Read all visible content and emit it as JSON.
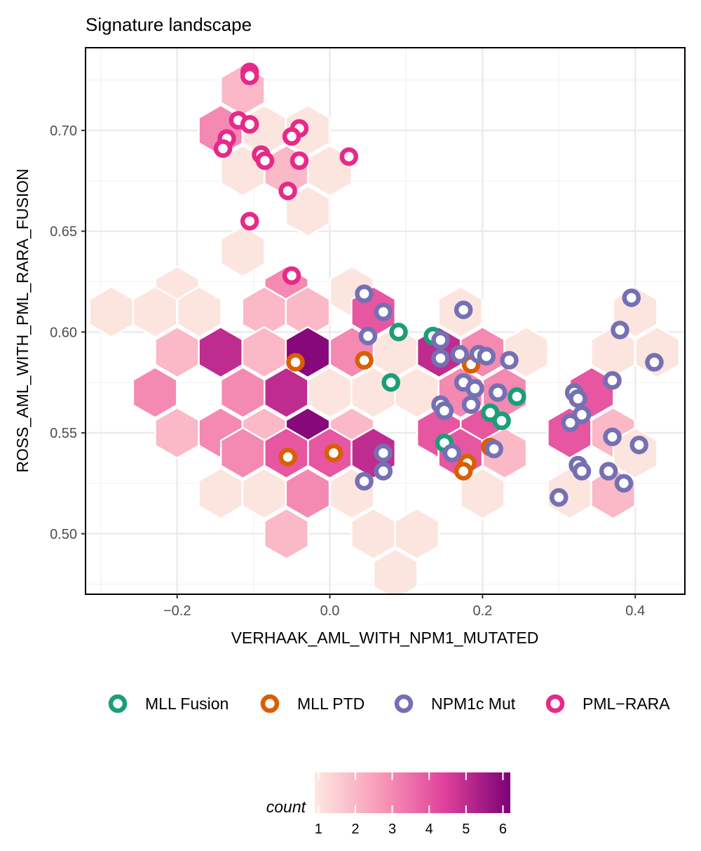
{
  "chart_data": {
    "type": "scatter",
    "title": "Signature landscape",
    "xlabel": "VERHAAK_AML_WITH_NPM1_MUTATED",
    "ylabel": "ROSS_AML_WITH_PML_RARA_FUSION",
    "xlim": [
      -0.32,
      0.465
    ],
    "ylim": [
      0.47,
      0.741
    ],
    "x_ticks": [
      -0.2,
      0.0,
      0.2,
      0.4
    ],
    "x_tick_labels": [
      "−0.2",
      "0.0",
      "0.2",
      "0.4"
    ],
    "y_ticks": [
      0.5,
      0.55,
      0.6,
      0.65,
      0.7
    ],
    "y_tick_labels": [
      "0.50",
      "0.55",
      "0.60",
      "0.65",
      "0.70"
    ],
    "grid": true,
    "legend_position": "bottom",
    "hexbin": {
      "fill_label": "count",
      "scale_ticks": [
        1,
        2,
        3,
        4,
        5,
        6
      ],
      "scale_min": 0.9,
      "scale_max": 6.2,
      "colors": [
        "#fde9e1",
        "#f99ab8",
        "#e0409a",
        "#7a0177"
      ],
      "cells": [
        {
          "x": -0.143,
          "y": 0.7,
          "count": 3
        },
        {
          "x": -0.086,
          "y": 0.7,
          "count": 1
        },
        {
          "x": -0.029,
          "y": 0.7,
          "count": 1
        },
        {
          "x": -0.114,
          "y": 0.72,
          "count": 2
        },
        {
          "x": -0.114,
          "y": 0.68,
          "count": 1
        },
        {
          "x": -0.057,
          "y": 0.68,
          "count": 2
        },
        {
          "x": 0.0,
          "y": 0.68,
          "count": 1
        },
        {
          "x": -0.029,
          "y": 0.66,
          "count": 1
        },
        {
          "x": -0.114,
          "y": 0.64,
          "count": 1
        },
        {
          "x": -0.2,
          "y": 0.62,
          "count": 1
        },
        {
          "x": -0.057,
          "y": 0.62,
          "count": 3
        },
        {
          "x": 0.029,
          "y": 0.62,
          "count": 1
        },
        {
          "x": -0.286,
          "y": 0.61,
          "count": 1
        },
        {
          "x": -0.229,
          "y": 0.61,
          "count": 1
        },
        {
          "x": -0.171,
          "y": 0.61,
          "count": 1
        },
        {
          "x": -0.086,
          "y": 0.61,
          "count": 2
        },
        {
          "x": -0.029,
          "y": 0.61,
          "count": 2
        },
        {
          "x": 0.057,
          "y": 0.61,
          "count": 4
        },
        {
          "x": 0.171,
          "y": 0.61,
          "count": 1
        },
        {
          "x": 0.4,
          "y": 0.61,
          "count": 1
        },
        {
          "x": -0.2,
          "y": 0.59,
          "count": 2
        },
        {
          "x": -0.143,
          "y": 0.59,
          "count": 5
        },
        {
          "x": -0.086,
          "y": 0.59,
          "count": 2
        },
        {
          "x": -0.029,
          "y": 0.59,
          "count": 6
        },
        {
          "x": 0.029,
          "y": 0.59,
          "count": 3
        },
        {
          "x": 0.086,
          "y": 0.59,
          "count": 1
        },
        {
          "x": 0.143,
          "y": 0.59,
          "count": 5
        },
        {
          "x": 0.2,
          "y": 0.59,
          "count": 3
        },
        {
          "x": 0.257,
          "y": 0.59,
          "count": 1
        },
        {
          "x": 0.371,
          "y": 0.59,
          "count": 1
        },
        {
          "x": 0.429,
          "y": 0.59,
          "count": 1
        },
        {
          "x": -0.229,
          "y": 0.57,
          "count": 3
        },
        {
          "x": -0.114,
          "y": 0.57,
          "count": 3
        },
        {
          "x": -0.057,
          "y": 0.57,
          "count": 5
        },
        {
          "x": 0.0,
          "y": 0.57,
          "count": 1
        },
        {
          "x": 0.057,
          "y": 0.57,
          "count": 1
        },
        {
          "x": 0.114,
          "y": 0.57,
          "count": 1
        },
        {
          "x": 0.171,
          "y": 0.57,
          "count": 3
        },
        {
          "x": 0.229,
          "y": 0.57,
          "count": 3
        },
        {
          "x": 0.343,
          "y": 0.57,
          "count": 4
        },
        {
          "x": -0.2,
          "y": 0.55,
          "count": 2
        },
        {
          "x": -0.143,
          "y": 0.55,
          "count": 3
        },
        {
          "x": -0.086,
          "y": 0.55,
          "count": 2
        },
        {
          "x": -0.029,
          "y": 0.55,
          "count": 6
        },
        {
          "x": 0.029,
          "y": 0.55,
          "count": 2
        },
        {
          "x": 0.143,
          "y": 0.55,
          "count": 4
        },
        {
          "x": 0.2,
          "y": 0.55,
          "count": 4
        },
        {
          "x": 0.314,
          "y": 0.55,
          "count": 4
        },
        {
          "x": 0.371,
          "y": 0.55,
          "count": 2
        },
        {
          "x": -0.114,
          "y": 0.54,
          "count": 3
        },
        {
          "x": -0.057,
          "y": 0.54,
          "count": 4
        },
        {
          "x": 0.0,
          "y": 0.54,
          "count": 4
        },
        {
          "x": 0.057,
          "y": 0.54,
          "count": 5
        },
        {
          "x": 0.171,
          "y": 0.54,
          "count": 4
        },
        {
          "x": 0.229,
          "y": 0.54,
          "count": 2
        },
        {
          "x": 0.4,
          "y": 0.54,
          "count": 1
        },
        {
          "x": -0.143,
          "y": 0.52,
          "count": 1
        },
        {
          "x": -0.086,
          "y": 0.52,
          "count": 1
        },
        {
          "x": -0.029,
          "y": 0.52,
          "count": 3
        },
        {
          "x": 0.029,
          "y": 0.52,
          "count": 1
        },
        {
          "x": 0.2,
          "y": 0.52,
          "count": 1
        },
        {
          "x": 0.314,
          "y": 0.52,
          "count": 1
        },
        {
          "x": 0.371,
          "y": 0.52,
          "count": 2
        },
        {
          "x": -0.057,
          "y": 0.5,
          "count": 2
        },
        {
          "x": 0.057,
          "y": 0.5,
          "count": 1
        },
        {
          "x": 0.114,
          "y": 0.5,
          "count": 1
        },
        {
          "x": 0.086,
          "y": 0.48,
          "count": 1
        }
      ]
    },
    "series": [
      {
        "name": "MLL Fusion",
        "color": "#1b9e77",
        "points": [
          [
            0.09,
            0.6
          ],
          [
            0.135,
            0.598
          ],
          [
            0.08,
            0.575
          ],
          [
            0.245,
            0.568
          ],
          [
            0.21,
            0.56
          ],
          [
            0.225,
            0.556
          ],
          [
            0.15,
            0.545
          ]
        ]
      },
      {
        "name": "MLL PTD",
        "color": "#d95f02",
        "points": [
          [
            -0.045,
            0.585
          ],
          [
            0.045,
            0.586
          ],
          [
            0.185,
            0.584
          ],
          [
            -0.055,
            0.538
          ],
          [
            0.005,
            0.54
          ],
          [
            0.18,
            0.535
          ],
          [
            0.21,
            0.543
          ],
          [
            0.175,
            0.531
          ]
        ]
      },
      {
        "name": "NPM1c Mut",
        "color": "#7570b3",
        "points": [
          [
            0.045,
            0.619
          ],
          [
            0.07,
            0.61
          ],
          [
            0.175,
            0.611
          ],
          [
            0.05,
            0.598
          ],
          [
            0.145,
            0.596
          ],
          [
            0.145,
            0.587
          ],
          [
            0.17,
            0.589
          ],
          [
            0.195,
            0.589
          ],
          [
            0.205,
            0.588
          ],
          [
            0.235,
            0.586
          ],
          [
            0.175,
            0.575
          ],
          [
            0.19,
            0.572
          ],
          [
            0.22,
            0.57
          ],
          [
            0.145,
            0.564
          ],
          [
            0.15,
            0.561
          ],
          [
            0.185,
            0.564
          ],
          [
            0.07,
            0.54
          ],
          [
            0.16,
            0.54
          ],
          [
            0.215,
            0.542
          ],
          [
            0.045,
            0.526
          ],
          [
            0.07,
            0.531
          ],
          [
            0.395,
            0.617
          ],
          [
            0.38,
            0.601
          ],
          [
            0.425,
            0.585
          ],
          [
            0.37,
            0.576
          ],
          [
            0.32,
            0.57
          ],
          [
            0.325,
            0.567
          ],
          [
            0.33,
            0.559
          ],
          [
            0.315,
            0.555
          ],
          [
            0.37,
            0.548
          ],
          [
            0.405,
            0.544
          ],
          [
            0.325,
            0.534
          ],
          [
            0.33,
            0.531
          ],
          [
            0.365,
            0.531
          ],
          [
            0.385,
            0.525
          ],
          [
            0.3,
            0.518
          ]
        ]
      },
      {
        "name": "PML−RARA",
        "color": "#e7298a",
        "points": [
          [
            -0.105,
            0.729
          ],
          [
            -0.105,
            0.727
          ],
          [
            -0.12,
            0.705
          ],
          [
            -0.105,
            0.703
          ],
          [
            -0.04,
            0.701
          ],
          [
            -0.05,
            0.697
          ],
          [
            -0.135,
            0.696
          ],
          [
            -0.14,
            0.691
          ],
          [
            -0.09,
            0.688
          ],
          [
            -0.085,
            0.685
          ],
          [
            -0.04,
            0.685
          ],
          [
            0.025,
            0.687
          ],
          [
            -0.055,
            0.67
          ],
          [
            -0.105,
            0.655
          ],
          [
            -0.05,
            0.628
          ]
        ]
      }
    ],
    "legend": [
      "MLL Fusion",
      "MLL PTD",
      "NPM1c Mut",
      "PML−RARA"
    ]
  }
}
